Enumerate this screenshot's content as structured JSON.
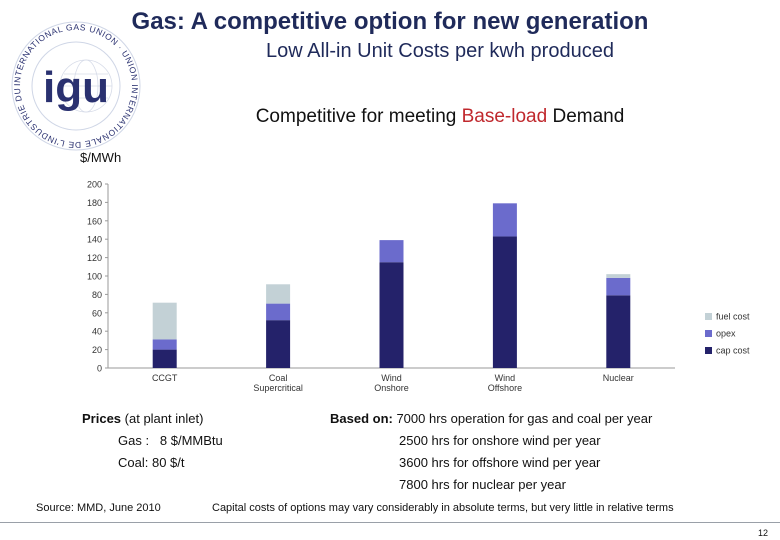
{
  "slide": {
    "title": "Gas: A competitive option for new generation",
    "subtitle": "Low All-in Unit Costs per kwh produced",
    "headline_prefix": "Competitive for meeting ",
    "headline_highlight": "Base-load",
    "headline_suffix": " Demand",
    "y_unit": "$/MWh",
    "page_number": "12"
  },
  "logo": {
    "letters": "igu",
    "ring_text": "INTERNATIONAL GAS UNION · UNION INTERNATIONALE DE L'INDUSTRIE DU GAZ"
  },
  "colors": {
    "fuel": "#c3d1d6",
    "opex": "#6b6bcc",
    "cap": "#24226a",
    "accent": "#c0282d",
    "title": "#1f2a5a"
  },
  "chart_data": {
    "type": "bar",
    "stacked": true,
    "title": "",
    "xlabel": "",
    "ylabel": "$/MWh",
    "ylim": [
      0,
      200
    ],
    "yticks": [
      0,
      20,
      40,
      60,
      80,
      100,
      120,
      140,
      160,
      180,
      200
    ],
    "categories": [
      [
        "CCGT"
      ],
      [
        "Coal",
        "Supercritical"
      ],
      [
        "Wind",
        "Onshore"
      ],
      [
        "Wind",
        "Offshore"
      ],
      [
        "Nuclear"
      ]
    ],
    "series": [
      {
        "name": "cap cost",
        "color": "#24226a",
        "values": [
          20,
          52,
          115,
          143,
          79
        ]
      },
      {
        "name": "opex",
        "color": "#6b6bcc",
        "values": [
          11,
          18,
          24,
          36,
          19
        ]
      },
      {
        "name": "fuel cost",
        "color": "#c3d1d6",
        "values": [
          40,
          21,
          0,
          0,
          4
        ]
      }
    ],
    "legend_order": [
      "fuel cost",
      "opex",
      "cap cost"
    ],
    "legend": "right",
    "grid": false
  },
  "prices": {
    "label_bold": "Prices",
    "label_rest": " (at plant inlet)",
    "gas": "Gas :   8 $/MMBtu",
    "coal": "Coal: 80 $/t"
  },
  "based_on": {
    "label_bold": "Based on:",
    "line1_rest": " 7000 hrs operation for gas and coal per year",
    "line2": "2500 hrs for onshore wind per year",
    "line3": "3600 hrs for offshore wind per year",
    "line4": "7800 hrs for nuclear per year"
  },
  "footer": {
    "source": "Source: MMD, June 2010",
    "note": "Capital costs of options may vary considerably in absolute terms, but very little in relative terms"
  }
}
